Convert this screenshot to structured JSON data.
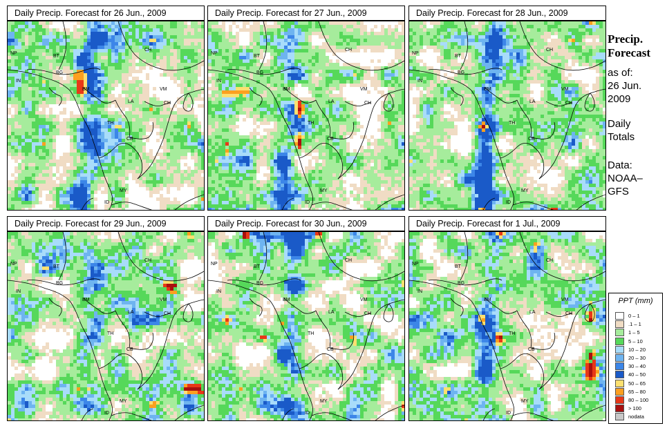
{
  "panels": [
    {
      "title": "Daily Precip. Forecast for  26 Jun., 2009"
    },
    {
      "title": "Daily Precip. Forecast for  27 Jun., 2009"
    },
    {
      "title": "Daily Precip. Forecast for  28 Jun., 2009"
    },
    {
      "title": "Daily Precip. Forecast for  29 Jun., 2009"
    },
    {
      "title": "Daily Precip. Forecast for  30 Jun., 2009"
    },
    {
      "title": "Daily Precip. Forecast for  1 Jul., 2009"
    }
  ],
  "country_labels": [
    "NP",
    "BT",
    "BG",
    "CH",
    "IN",
    "BM",
    "VM",
    "LA",
    "TH",
    "CB",
    "MY",
    "ID",
    "CH"
  ],
  "sidebar": {
    "title_line1": "Precip.",
    "title_line2": "Forecast",
    "asof_line1": "as of:",
    "asof_line2": "26 Jun.",
    "asof_line3": "2009",
    "daily_line1": "Daily",
    "daily_line2": "Totals",
    "data_line1": "Data:",
    "data_line2": "NOAA–",
    "data_line3": "GFS"
  },
  "legend": {
    "title": "PPT (mm)",
    "items": [
      {
        "label": "0 – 1",
        "color": "#ffffff"
      },
      {
        "label": ".1 – 1",
        "color": "#f0dcc4"
      },
      {
        "label": "1 – 5",
        "color": "#a6ec9c"
      },
      {
        "label": "5 – 10",
        "color": "#56d85a"
      },
      {
        "label": "10 – 20",
        "color": "#a8dcfa"
      },
      {
        "label": "20 – 30",
        "color": "#6eb4f0"
      },
      {
        "label": "30 – 40",
        "color": "#3c86e8"
      },
      {
        "label": "40 – 50",
        "color": "#1a5ac8"
      },
      {
        "label": "50 – 65",
        "color": "#fce070"
      },
      {
        "label": "65 – 80",
        "color": "#fca020"
      },
      {
        "label": "80 – 100",
        "color": "#e83818"
      },
      {
        "label": "> 100",
        "color": "#a81010"
      },
      {
        "label": "nodata",
        "color": "#c8c8c8"
      }
    ]
  }
}
